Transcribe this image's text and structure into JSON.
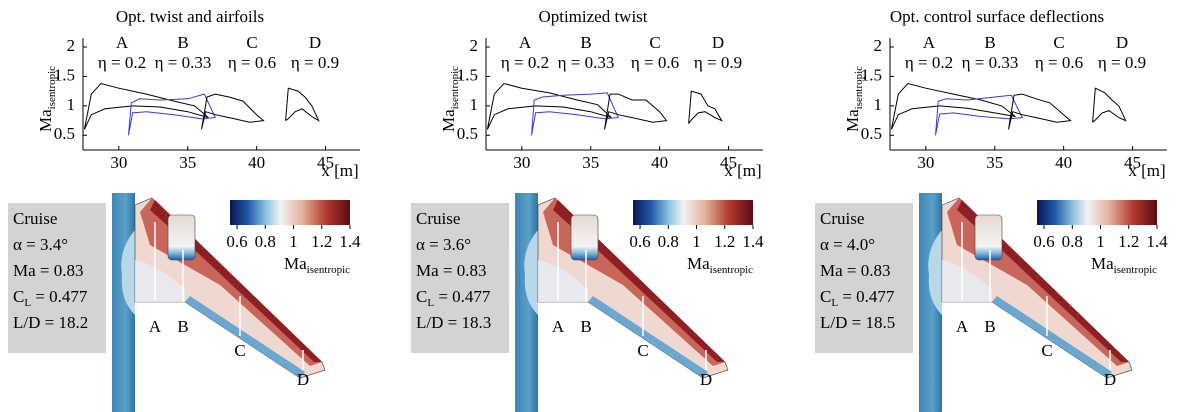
{
  "panels": [
    {
      "title": "Opt. twist and airfoils",
      "chart": {
        "type": "line",
        "ylabel": {
          "main": "Ma",
          "sub": "isentropic"
        },
        "xlabel": "x [m]",
        "xlim": [
          27.4,
          47.5
        ],
        "ylim": [
          0.25,
          2
        ],
        "xticks": [
          30,
          35,
          40,
          45
        ],
        "yticks": [
          0.5,
          1,
          1.5,
          2
        ],
        "series": [
          {
            "name": "A",
            "label": "η = 0.2",
            "color": "#000000",
            "x": [
              27.5,
              28,
              28.7,
              30,
              32,
              34,
              35.5,
              36.5,
              35,
              33,
              31,
              29,
              28,
              27.5
            ],
            "values": [
              0.6,
              1.2,
              1.38,
              1.3,
              1.2,
              1.08,
              1.0,
              0.8,
              0.9,
              0.98,
              1.0,
              0.95,
              0.85,
              0.6
            ]
          },
          {
            "name": "B",
            "label": "η = 0.33",
            "color": "#3a3ad8",
            "x": [
              30.7,
              30.9,
              31.5,
              33,
              35,
              36.2,
              37,
              36,
              34,
              32,
              31,
              30.7
            ],
            "values": [
              0.5,
              1.05,
              1.12,
              1.1,
              1.12,
              1.2,
              0.8,
              0.78,
              0.85,
              0.9,
              0.88,
              0.5
            ]
          },
          {
            "name": "C",
            "label": "η = 0.6",
            "color": "#000000",
            "x": [
              36,
              36.4,
              37,
              38,
              39,
              40,
              40.5,
              39.5,
              38,
              37,
              36.3,
              36
            ],
            "values": [
              0.6,
              1.15,
              1.2,
              1.15,
              1.08,
              0.85,
              0.75,
              0.72,
              0.8,
              0.85,
              0.9,
              0.6
            ]
          },
          {
            "name": "D",
            "label": "η = 0.9",
            "color": "#000000",
            "x": [
              42.1,
              42.3,
              43,
              43.5,
              44,
              44.5,
              44,
              43.3,
              42.8,
              42.3,
              42.1
            ],
            "values": [
              0.75,
              1.3,
              1.25,
              1.15,
              1.0,
              0.75,
              0.82,
              0.95,
              0.9,
              0.78,
              0.75
            ]
          }
        ]
      },
      "colorbar": {
        "lim": [
          0.55,
          1.4
        ],
        "ticks": [
          0.6,
          0.8,
          1,
          1.2,
          1.4
        ],
        "label": {
          "main": "Ma",
          "sub": "isentropic"
        }
      },
      "conditions": [
        "Cruise",
        "α = 3.4°",
        "Ma = 0.83",
        {
          "main": "C",
          "sub": "L",
          "rest": " = 0.477"
        },
        "L/D = 18.2"
      ]
    },
    {
      "title": "Optimized twist",
      "chart": {
        "type": "line",
        "ylabel": {
          "main": "Ma",
          "sub": "isentropic"
        },
        "xlabel": "x [m]",
        "xlim": [
          27.4,
          47.5
        ],
        "ylim": [
          0.25,
          2
        ],
        "xticks": [
          30,
          35,
          40,
          45
        ],
        "yticks": [
          0.5,
          1,
          1.5,
          2
        ],
        "series": [
          {
            "name": "A",
            "label": "η = 0.2",
            "color": "#000000",
            "x": [
              27.5,
              28,
              28.7,
              30,
              32,
              34,
              35.5,
              36.5,
              35,
              33,
              31,
              29,
              28,
              27.5
            ],
            "values": [
              0.6,
              1.2,
              1.38,
              1.3,
              1.22,
              1.1,
              1.02,
              0.8,
              0.9,
              0.98,
              1.0,
              0.95,
              0.85,
              0.6
            ]
          },
          {
            "name": "B",
            "label": "η = 0.33",
            "color": "#3a3ad8",
            "x": [
              30.7,
              30.9,
              31.5,
              33,
              35,
              36.2,
              37,
              36,
              34,
              32,
              31,
              30.7
            ],
            "values": [
              0.5,
              1.1,
              1.15,
              1.18,
              1.2,
              1.22,
              0.8,
              0.78,
              0.85,
              0.9,
              0.88,
              0.5
            ]
          },
          {
            "name": "C",
            "label": "η = 0.6",
            "color": "#000000",
            "x": [
              36,
              36.4,
              37,
              38,
              39,
              40,
              40.5,
              39.5,
              38,
              37,
              36.3,
              36
            ],
            "values": [
              0.6,
              1.2,
              1.2,
              1.1,
              1.1,
              0.9,
              0.75,
              0.72,
              0.8,
              0.85,
              0.9,
              0.6
            ]
          },
          {
            "name": "D",
            "label": "η = 0.9",
            "color": "#000000",
            "x": [
              42.1,
              42.3,
              43,
              43.5,
              44,
              44.5,
              44,
              43.3,
              42.8,
              42.3,
              42.1
            ],
            "values": [
              0.7,
              1.25,
              1.2,
              1.0,
              0.95,
              0.75,
              0.8,
              0.9,
              0.88,
              0.76,
              0.7
            ]
          }
        ]
      },
      "colorbar": {
        "lim": [
          0.55,
          1.4
        ],
        "ticks": [
          0.6,
          0.8,
          1,
          1.2,
          1.4
        ],
        "label": {
          "main": "Ma",
          "sub": "isentropic"
        }
      },
      "conditions": [
        "Cruise",
        "α = 3.6°",
        "Ma = 0.83",
        {
          "main": "C",
          "sub": "L",
          "rest": " = 0.477"
        },
        "L/D = 18.3"
      ]
    },
    {
      "title": "Opt. control surface deflections",
      "chart": {
        "type": "line",
        "ylabel": {
          "main": "Ma",
          "sub": "isentropic"
        },
        "xlabel": "x [m]",
        "xlim": [
          27.4,
          47.5
        ],
        "ylim": [
          0.25,
          2
        ],
        "xticks": [
          30,
          35,
          40,
          45
        ],
        "yticks": [
          0.5,
          1,
          1.5,
          2
        ],
        "series": [
          {
            "name": "A",
            "label": "η = 0.2",
            "color": "#000000",
            "x": [
              27.5,
              28,
              28.7,
              30,
              32,
              34,
              35.5,
              36.5,
              35,
              33,
              31,
              29,
              28,
              27.5
            ],
            "values": [
              0.6,
              1.2,
              1.38,
              1.3,
              1.2,
              1.1,
              1.0,
              0.82,
              0.88,
              0.96,
              1.0,
              0.95,
              0.85,
              0.6
            ]
          },
          {
            "name": "B",
            "label": "η = 0.33",
            "color": "#3a3ad8",
            "x": [
              30.7,
              30.9,
              31.5,
              33,
              35,
              36.2,
              37,
              36,
              34,
              32,
              31,
              30.7
            ],
            "values": [
              0.5,
              1.08,
              1.12,
              1.1,
              1.15,
              1.18,
              0.8,
              0.78,
              0.82,
              0.88,
              0.86,
              0.5
            ]
          },
          {
            "name": "C",
            "label": "η = 0.6",
            "color": "#000000",
            "x": [
              36,
              36.4,
              37,
              38,
              39,
              40,
              40.5,
              39.5,
              38,
              37,
              36.3,
              36
            ],
            "values": [
              0.6,
              1.18,
              1.2,
              1.12,
              1.05,
              0.85,
              0.75,
              0.72,
              0.8,
              0.85,
              0.9,
              0.6
            ]
          },
          {
            "name": "D",
            "label": "η = 0.9",
            "color": "#000000",
            "x": [
              42.1,
              42.3,
              43,
              43.5,
              44,
              44.5,
              44,
              43.3,
              42.8,
              42.3,
              42.1
            ],
            "values": [
              0.72,
              1.3,
              1.22,
              1.1,
              1.0,
              0.75,
              0.8,
              0.92,
              0.88,
              0.76,
              0.72
            ]
          }
        ]
      },
      "colorbar": {
        "lim": [
          0.55,
          1.4
        ],
        "ticks": [
          0.6,
          0.8,
          1,
          1.2,
          1.4
        ],
        "label": {
          "main": "Ma",
          "sub": "isentropic"
        }
      },
      "conditions": [
        "Cruise",
        "α = 4.0°",
        "Ma = 0.83",
        {
          "main": "C",
          "sub": "L",
          "rest": " = 0.477"
        },
        "L/D = 18.5"
      ]
    }
  ]
}
